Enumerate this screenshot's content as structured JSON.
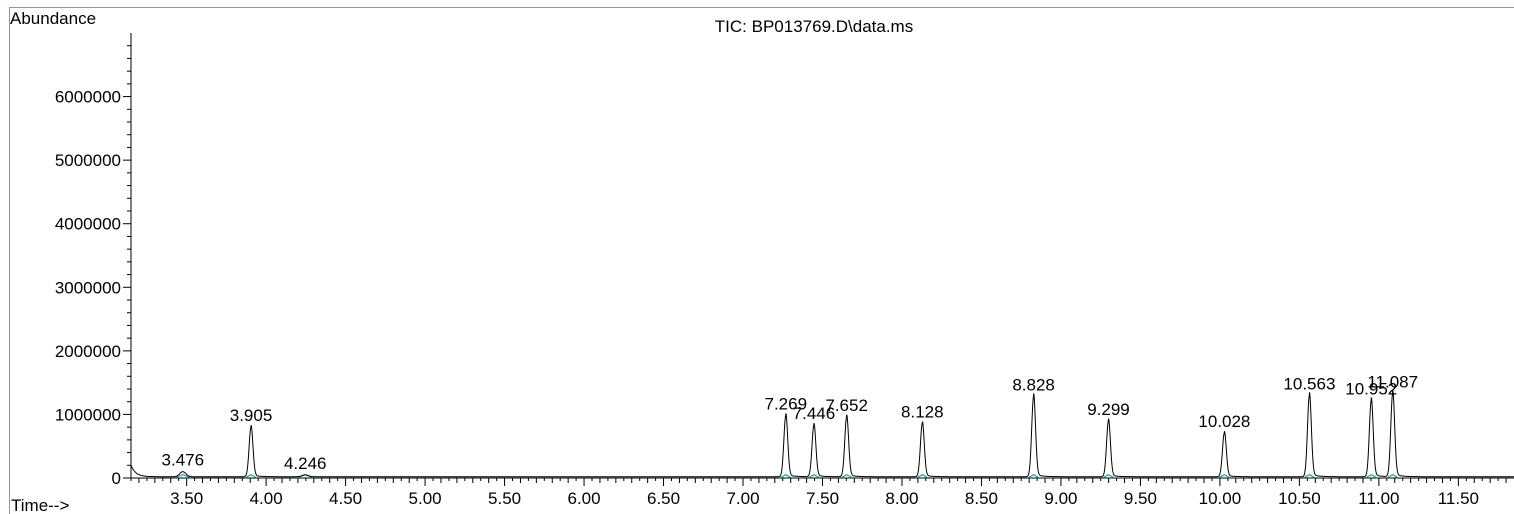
{
  "chart_data": {
    "type": "line",
    "title": "TIC: BP013769.D\\data.ms",
    "ylabel": "Abundance",
    "xlabel": "Time-->",
    "xlim": [
      3.15,
      11.85
    ],
    "ylim": [
      0,
      7000000
    ],
    "x_ticks": [
      "3.50",
      "4.00",
      "4.50",
      "5.00",
      "5.50",
      "6.00",
      "6.50",
      "7.00",
      "7.50",
      "8.00",
      "8.50",
      "9.00",
      "9.50",
      "10.00",
      "10.50",
      "11.00",
      "11.50"
    ],
    "y_ticks": [
      "0",
      "1000000",
      "2000000",
      "3000000",
      "4000000",
      "5000000",
      "6000000"
    ],
    "baseline": 20000,
    "peaks": [
      {
        "label": "3.476",
        "x": 3.476,
        "height": 80000
      },
      {
        "label": "3.905",
        "x": 3.905,
        "height": 780000
      },
      {
        "label": "4.246",
        "x": 4.246,
        "height": 30000
      },
      {
        "label": "7.269",
        "x": 7.269,
        "height": 960000
      },
      {
        "label": "7.446",
        "x": 7.446,
        "height": 810000
      },
      {
        "label": "7.652",
        "x": 7.652,
        "height": 940000
      },
      {
        "label": "8.128",
        "x": 8.128,
        "height": 840000
      },
      {
        "label": "8.828",
        "x": 8.828,
        "height": 1260000
      },
      {
        "label": "9.299",
        "x": 9.299,
        "height": 880000
      },
      {
        "label": "10.028",
        "x": 10.028,
        "height": 690000
      },
      {
        "label": "10.563",
        "x": 10.563,
        "height": 1280000
      },
      {
        "label": "10.952",
        "x": 10.952,
        "height": 1200000
      },
      {
        "label": "11.087",
        "x": 11.087,
        "height": 1310000
      }
    ]
  }
}
